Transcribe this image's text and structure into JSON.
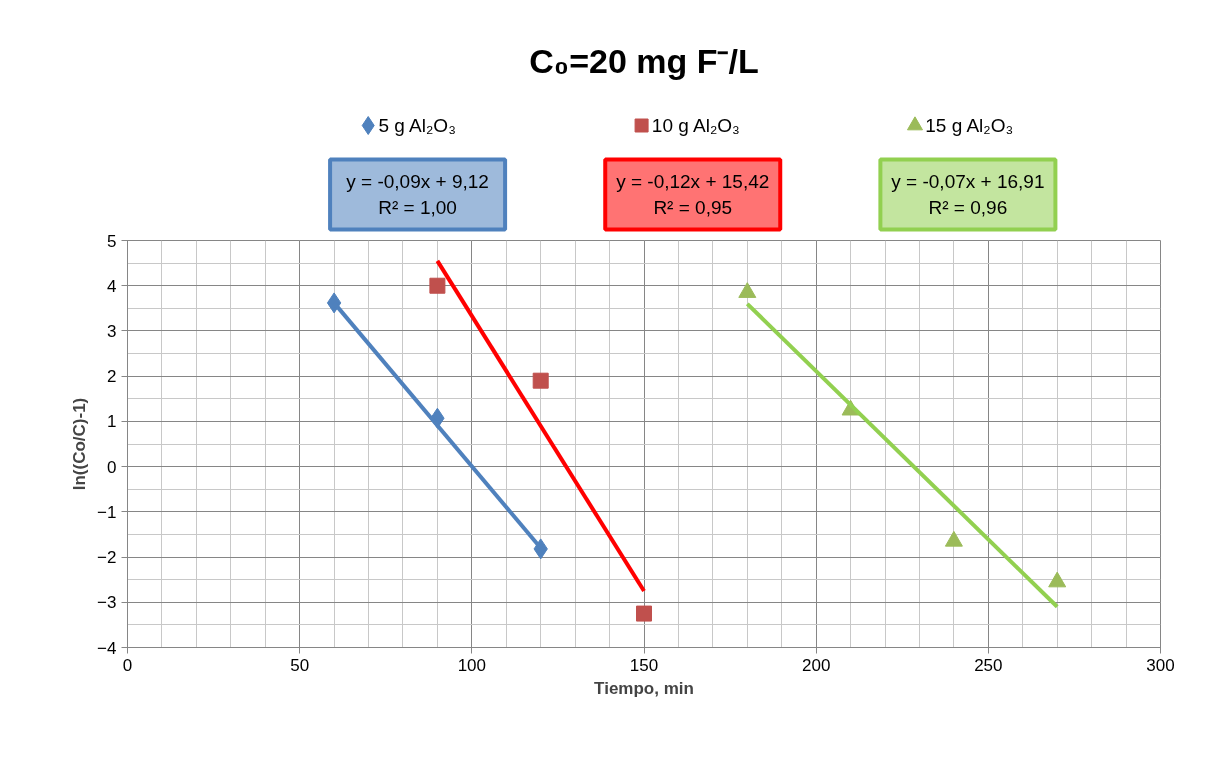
{
  "chart_data": {
    "type": "scatter",
    "title": "C₀=20 mg F⁻/L",
    "xlabel": "Tiempo, min",
    "ylabel": "ln((Co/C)-1)",
    "xlim": [
      0,
      300
    ],
    "xticks": [
      0,
      50,
      100,
      150,
      200,
      250,
      300
    ],
    "ylim": [
      -4,
      5
    ],
    "yticks": [
      -4,
      -3,
      -2,
      -1,
      0,
      1,
      2,
      3,
      4,
      5
    ],
    "grid": true,
    "legend": "top",
    "series": [
      {
        "name": "5 g Al₂O₃",
        "marker": "diamond",
        "color": "#4f81bd",
        "x": [
          60,
          90,
          120
        ],
        "values": [
          3.62,
          1.07,
          -1.82
        ]
      },
      {
        "name": "10 g Al₂O₃",
        "marker": "square",
        "color": "#c0504d",
        "x": [
          90,
          120,
          150
        ],
        "values": [
          4.0,
          1.9,
          -3.25
        ]
      },
      {
        "name": "15 g Al₂O₃",
        "marker": "triangle",
        "color": "#9bbb59",
        "x": [
          180,
          210,
          240,
          270
        ],
        "values": [
          3.85,
          1.25,
          -1.65,
          -2.55
        ]
      },
      {
        "type": "line",
        "color": "#4f81bd",
        "x": [
          60,
          120
        ],
        "values": [
          3.62,
          -1.8
        ]
      },
      {
        "type": "line",
        "color": "#ff0000",
        "x": [
          90,
          150
        ],
        "values": [
          4.55,
          -2.75
        ]
      },
      {
        "type": "line",
        "color": "#92d050",
        "x": [
          180,
          270
        ],
        "values": [
          3.6,
          -3.1
        ]
      }
    ],
    "annotations": [
      "y = -0,09x + 9,12\nR² = 1,00",
      "y = -0,12x + 15,42\nR² = 0,95",
      "y = -0,07x + 16,91\nR² = 0,96"
    ]
  }
}
